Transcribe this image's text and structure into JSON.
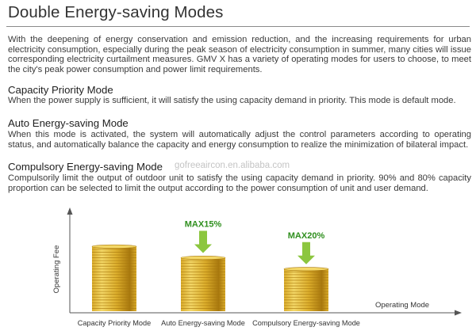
{
  "title": "Double Energy-saving Modes",
  "intro": "With the deepening of energy conservation and emission reduction, and the increasing requirements for urban electricity consumption, especially during the peak season of electricity consumption in summer, many cities will issue corresponding electricity curtailment measures. GMV X has a variety of operating modes for users to choose, to meet the city's peak power consumption and power limit requirements.",
  "modes": [
    {
      "heading": "Capacity Priority Mode",
      "text": "When the power supply is sufficient, it will satisfy the using capacity demand in priority. This mode is default mode."
    },
    {
      "heading": "Auto Energy-saving Mode",
      "text": "When this mode is activated, the system will automatically adjust the control parameters according to operating status, and automatically balance the capacity and energy consumption to realize the minimization of bilateral impact."
    },
    {
      "heading": "Compulsory Energy-saving Mode",
      "text": "Compulsorily limit the output of outdoor unit to satisfy the using capacity demand in priority. 90% and 80% capacity proportion can be selected to limit the output according to the power consumption of unit and user demand."
    }
  ],
  "watermark": "gofreeaircon.en.alibaba.com",
  "diagram": {
    "y_axis_label": "Operating Fee",
    "x_axis_label": "Operating Mode",
    "stacks": [
      {
        "label": "Capacity Priority Mode",
        "coins": 23,
        "max_label": ""
      },
      {
        "label": "Auto Energy-saving Mode",
        "coins": 19,
        "max_label": "MAX15%"
      },
      {
        "label": "Compulsory Energy-saving Mode",
        "coins": 15,
        "max_label": "MAX20%"
      }
    ],
    "colors": {
      "coin_light": "#f4d868",
      "coin_mid": "#dcae2c",
      "coin_dark": "#a8780e",
      "arrow": "#8cc63f"
    }
  }
}
